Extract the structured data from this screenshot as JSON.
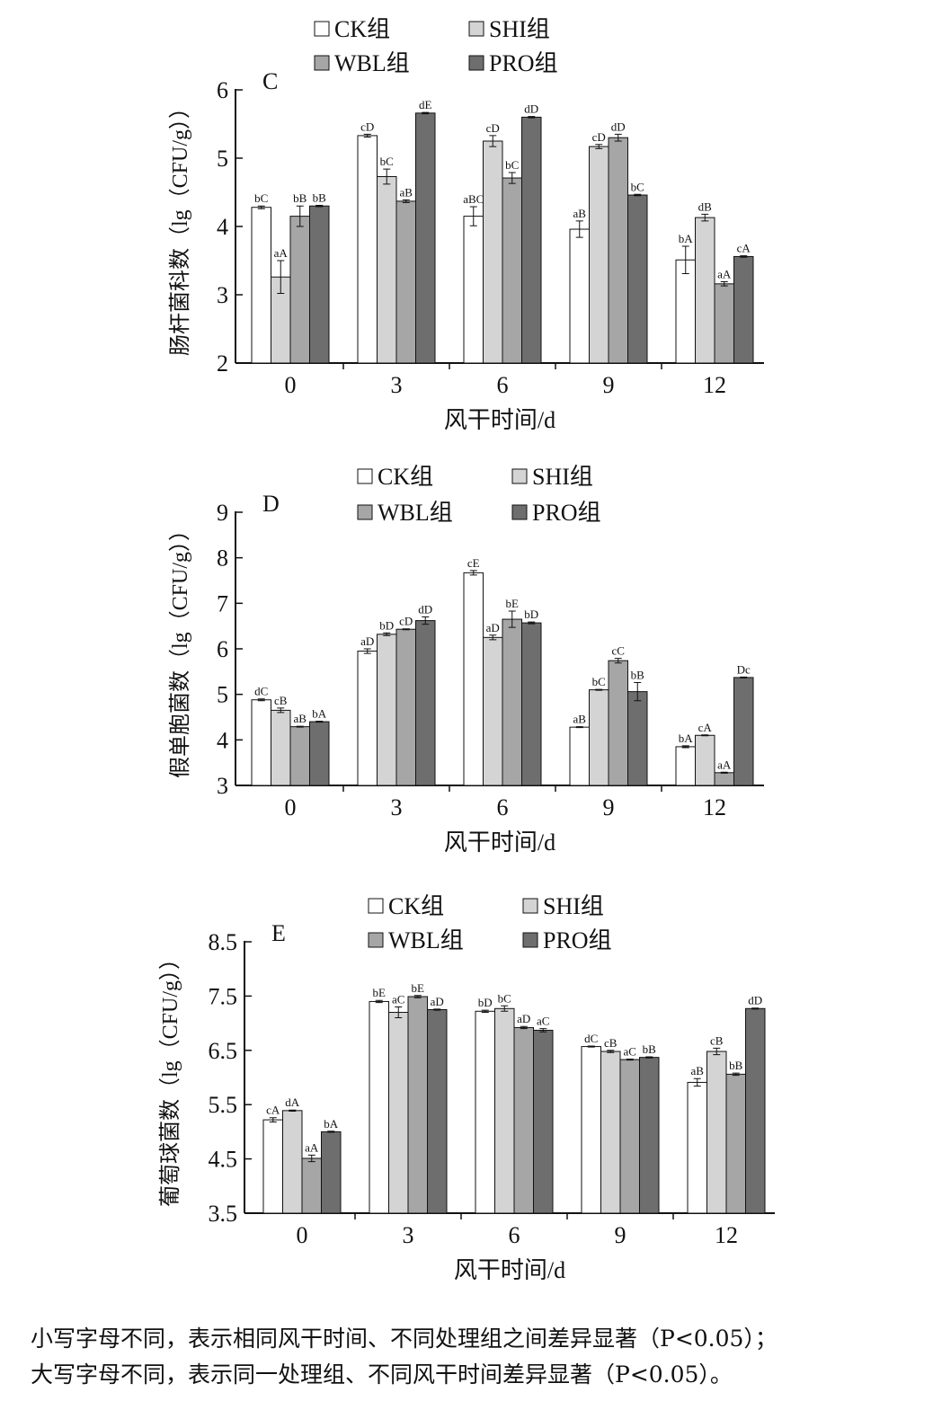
{
  "chart_data": [
    {
      "type": "bar",
      "panel": "C",
      "ylabel": "肠杆菌科数（lg（CFU/g））",
      "xlabel": "风干时间/d",
      "categories": [
        "0",
        "3",
        "6",
        "9",
        "12"
      ],
      "ylim": [
        2,
        6
      ],
      "yticks": [
        2,
        3,
        4,
        5,
        6
      ],
      "legend_position": "top",
      "series": [
        {
          "name": "CK组",
          "color": "#ffffff",
          "values": [
            4.28,
            5.33,
            4.15,
            3.96,
            3.51
          ],
          "errors": [
            0.02,
            0.02,
            0.14,
            0.12,
            0.2
          ],
          "labels": [
            "bC",
            "cD",
            "aBC",
            "aB",
            "bA"
          ]
        },
        {
          "name": "SHI组",
          "color": "#d4d4d4",
          "values": [
            3.26,
            4.73,
            5.25,
            5.17,
            4.13
          ],
          "errors": [
            0.24,
            0.11,
            0.08,
            0.03,
            0.05
          ],
          "labels": [
            "aA",
            "bC",
            "cD",
            "cD",
            "dB"
          ]
        },
        {
          "name": "WBL组",
          "color": "#a6a6a6",
          "values": [
            4.15,
            4.37,
            4.71,
            5.3,
            3.16
          ],
          "errors": [
            0.15,
            0.02,
            0.08,
            0.05,
            0.03
          ],
          "labels": [
            "bB",
            "aB",
            "bC",
            "dD",
            "aA"
          ]
        },
        {
          "name": "PRO组",
          "color": "#6e6e6e",
          "values": [
            4.3,
            5.66,
            5.6,
            4.46,
            3.56
          ],
          "errors": [
            0.01,
            0.01,
            0.01,
            0.01,
            0.01
          ],
          "labels": [
            "bB",
            "dE",
            "dD",
            "bC",
            "cA"
          ]
        }
      ]
    },
    {
      "type": "bar",
      "panel": "D",
      "ylabel": "假单胞菌数（lg（CFU/g））",
      "xlabel": "风干时间/d",
      "categories": [
        "0",
        "3",
        "6",
        "9",
        "12"
      ],
      "ylim": [
        3,
        9
      ],
      "yticks": [
        3,
        4,
        5,
        6,
        7,
        8,
        9
      ],
      "legend_position": "top",
      "series": [
        {
          "name": "CK组",
          "color": "#ffffff",
          "values": [
            4.88,
            5.95,
            7.67,
            4.28,
            3.85
          ],
          "errors": [
            0.02,
            0.05,
            0.05,
            0.01,
            0.02
          ],
          "labels": [
            "dC",
            "aD",
            "cE",
            "aB",
            "bA"
          ]
        },
        {
          "name": "SHI组",
          "color": "#d4d4d4",
          "values": [
            4.65,
            6.32,
            6.25,
            5.1,
            4.1
          ],
          "errors": [
            0.05,
            0.03,
            0.05,
            0.01,
            0.01
          ],
          "labels": [
            "cB",
            "bD",
            "aD",
            "bC",
            "cA"
          ]
        },
        {
          "name": "WBL组",
          "color": "#a6a6a6",
          "values": [
            4.29,
            6.43,
            6.65,
            5.74,
            3.28
          ],
          "errors": [
            0.01,
            0.01,
            0.18,
            0.05,
            0.01
          ],
          "labels": [
            "aB",
            "cD",
            "bE",
            "cC",
            "aA"
          ]
        },
        {
          "name": "PRO组",
          "color": "#6e6e6e",
          "values": [
            4.4,
            6.62,
            6.57,
            5.06,
            5.37
          ],
          "errors": [
            0.01,
            0.08,
            0.02,
            0.2,
            0.01
          ],
          "labels": [
            "bA",
            "dD",
            "bD",
            "bB",
            "Dc"
          ]
        }
      ]
    },
    {
      "type": "bar",
      "panel": "E",
      "ylabel": "葡萄球菌数（lg（CFU/g））",
      "xlabel": "风干时间/d",
      "categories": [
        "0",
        "3",
        "6",
        "9",
        "12"
      ],
      "ylim": [
        3.5,
        8.5
      ],
      "yticks": [
        3.5,
        4.5,
        5.5,
        6.5,
        7.5,
        8.5
      ],
      "legend_position": "top",
      "series": [
        {
          "name": "CK组",
          "color": "#ffffff",
          "values": [
            5.22,
            7.4,
            7.22,
            6.57,
            5.91
          ],
          "errors": [
            0.04,
            0.02,
            0.02,
            0.01,
            0.07
          ],
          "labels": [
            "cA",
            "bE",
            "bD",
            "dC",
            "aB"
          ]
        },
        {
          "name": "SHI组",
          "color": "#d4d4d4",
          "values": [
            5.39,
            7.2,
            7.27,
            6.48,
            6.48
          ],
          "errors": [
            0.01,
            0.1,
            0.05,
            0.02,
            0.06
          ],
          "labels": [
            "dA",
            "aC",
            "bC",
            "cB",
            "cB"
          ]
        },
        {
          "name": "WBL组",
          "color": "#a6a6a6",
          "values": [
            4.51,
            7.49,
            6.92,
            6.33,
            6.06
          ],
          "errors": [
            0.06,
            0.02,
            0.02,
            0.01,
            0.02
          ],
          "labels": [
            "aA",
            "bE",
            "aD",
            "aC",
            "bB"
          ]
        },
        {
          "name": "PRO组",
          "color": "#6e6e6e",
          "values": [
            5.0,
            7.25,
            6.87,
            6.37,
            7.27
          ],
          "errors": [
            0.01,
            0.01,
            0.03,
            0.01,
            0.01
          ],
          "labels": [
            "bA",
            "aD",
            "aC",
            "bB",
            "dD"
          ]
        }
      ]
    }
  ],
  "footnote": {
    "line1": "小写字母不同，表示相同风干时间、不同处理组之间差异显著（P<0.05）；",
    "line2": "大写字母不同，表示同一处理组、不同风干时间差异显著（P<0.05）。"
  }
}
